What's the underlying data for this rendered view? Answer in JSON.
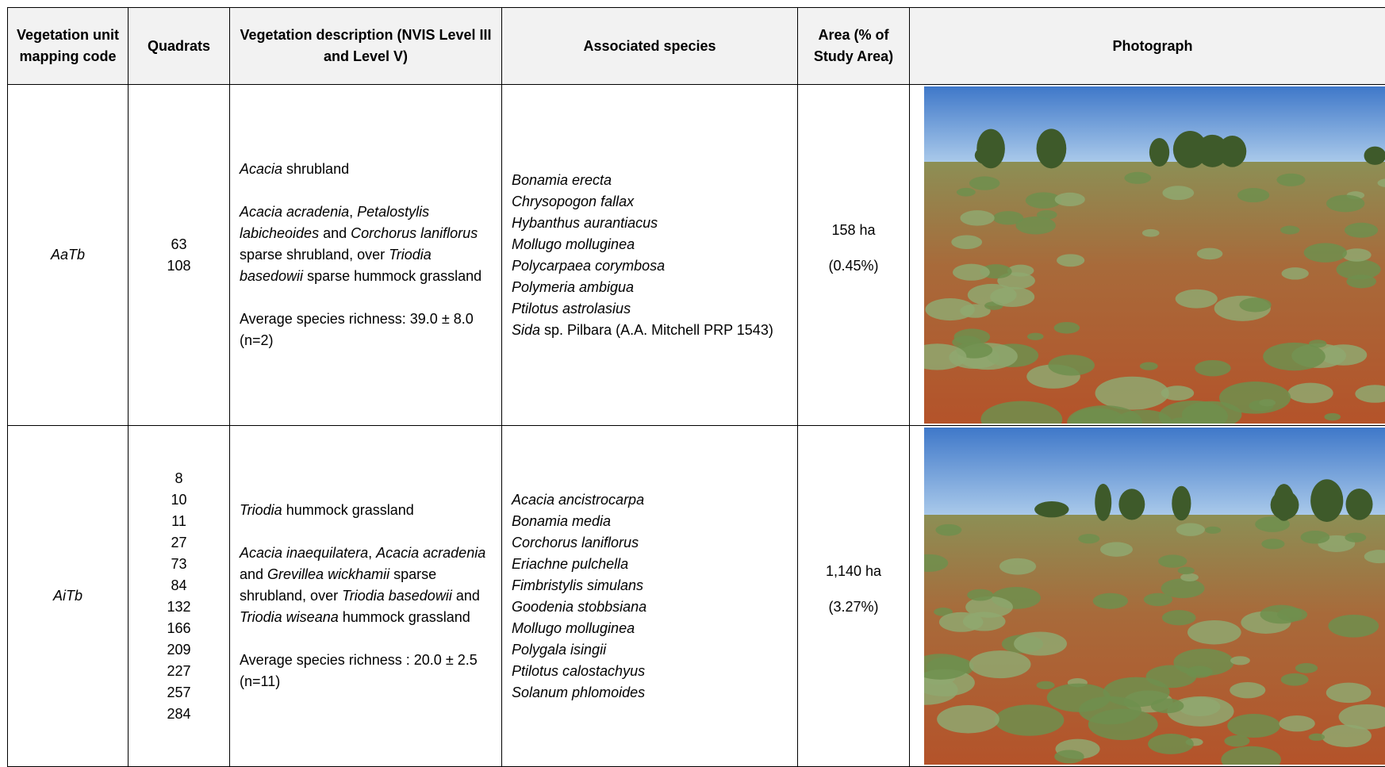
{
  "table": {
    "headers": [
      "Vegetation unit mapping code",
      "Quadrats",
      "Vegetation description (NVIS Level III and Level V)",
      "Associated species",
      "Area (% of Study Area)",
      "Photograph"
    ],
    "rows": [
      {
        "code": "AaTb",
        "quadrats": [
          "63",
          "108"
        ],
        "description": [
          [
            {
              "text": "Acacia",
              "italic": true
            },
            {
              "text": " shrubland"
            }
          ],
          [
            {
              "text": "Acacia acradenia",
              "italic": true
            },
            {
              "text": ", "
            },
            {
              "text": "Petalostylis labicheoides",
              "italic": true
            },
            {
              "text": " and "
            },
            {
              "text": "Corchorus laniflorus",
              "italic": true
            },
            {
              "text": " sparse shrubland, over "
            },
            {
              "text": "Triodia basedowii",
              "italic": true
            },
            {
              "text": " sparse hummock grassland"
            }
          ],
          [
            {
              "text": "Average species richness: 39.0 ± 8.0 (n=2)"
            }
          ]
        ],
        "species": [
          [
            {
              "text": "Bonamia erecta",
              "italic": true
            }
          ],
          [
            {
              "text": "Chrysopogon fallax",
              "italic": true
            }
          ],
          [
            {
              "text": "Hybanthus aurantiacus",
              "italic": true
            }
          ],
          [
            {
              "text": "Mollugo molluginea",
              "italic": true
            }
          ],
          [
            {
              "text": "Polycarpaea corymbosa",
              "italic": true
            }
          ],
          [
            {
              "text": "Polymeria ambigua",
              "italic": true
            }
          ],
          [
            {
              "text": "Ptilotus astrolasius",
              "italic": true
            }
          ],
          [
            {
              "text": "Sida",
              "italic": true
            },
            {
              "text": " sp. Pilbara (A.A. Mitchell PRP 1543)"
            }
          ]
        ],
        "area": "158 ha",
        "percent": "(0.45%)"
      },
      {
        "code": "AiTb",
        "quadrats": [
          "8",
          "10",
          "11",
          "27",
          "73",
          "84",
          "132",
          "166",
          "209",
          "227",
          "257",
          "284"
        ],
        "description": [
          [
            {
              "text": "Triodia",
              "italic": true
            },
            {
              "text": " hummock grassland"
            }
          ],
          [
            {
              "text": "Acacia inaequilatera",
              "italic": true
            },
            {
              "text": ", "
            },
            {
              "text": "Acacia acradenia",
              "italic": true
            },
            {
              "text": " and "
            },
            {
              "text": "Grevillea wickhamii",
              "italic": true
            },
            {
              "text": " sparse shrubland, over "
            },
            {
              "text": "Triodia basedowii",
              "italic": true
            },
            {
              "text": " and "
            },
            {
              "text": "Triodia wiseana",
              "italic": true
            },
            {
              "text": " hummock grassland"
            }
          ],
          [
            {
              "text": "Average species richness : 20.0 ± 2.5 (n=11)"
            }
          ]
        ],
        "species": [
          [
            {
              "text": "Acacia ancistrocarpa",
              "italic": true
            }
          ],
          [
            {
              "text": "Bonamia media",
              "italic": true
            }
          ],
          [
            {
              "text": "Corchorus laniflorus",
              "italic": true
            }
          ],
          [
            {
              "text": "Eriachne pulchella",
              "italic": true
            }
          ],
          [
            {
              "text": "Fimbristylis simulans",
              "italic": true
            }
          ],
          [
            {
              "text": "Goodenia stobbsiana",
              "italic": true
            }
          ],
          [
            {
              "text": "Mollugo molluginea",
              "italic": true
            }
          ],
          [
            {
              "text": "Polygala isingii",
              "italic": true
            }
          ],
          [
            {
              "text": "Ptilotus calostachyus",
              "italic": true
            }
          ],
          [
            {
              "text": "Solanum phlomoides",
              "italic": true
            }
          ]
        ],
        "area": "1,140 ha",
        "percent": "(3.27%)"
      }
    ]
  }
}
